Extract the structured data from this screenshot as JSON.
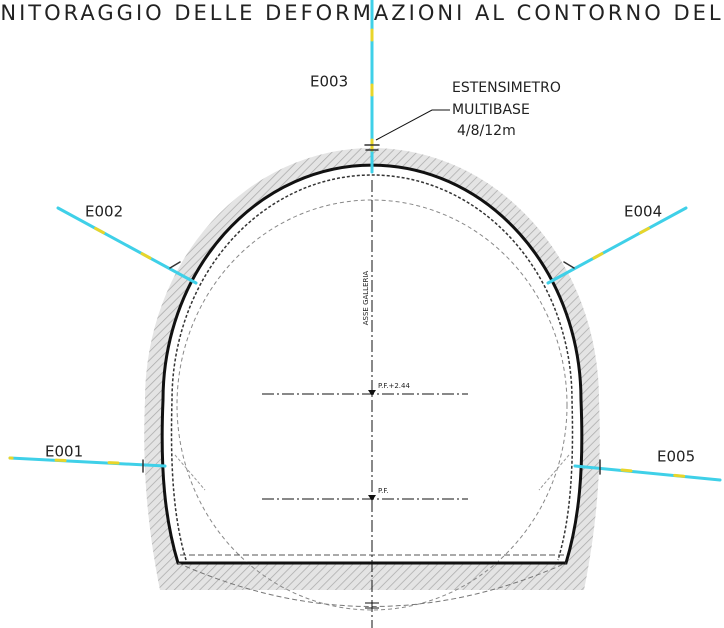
{
  "title": "NITORAGGIO DELLE DEFORMAZIONI AL CONTORNO DEL",
  "callout": {
    "lines": [
      "ESTENSIMETRO",
      "MULTIBASE",
      "4/8/12m"
    ]
  },
  "extensometers": [
    {
      "label": "E001"
    },
    {
      "label": "E002"
    },
    {
      "label": "E003"
    },
    {
      "label": "E004"
    },
    {
      "label": "E005"
    }
  ],
  "axis_label": "ASSE GALLERIA",
  "levels": [
    {
      "label": "P.F.+2.44"
    },
    {
      "label": "P.F."
    }
  ]
}
